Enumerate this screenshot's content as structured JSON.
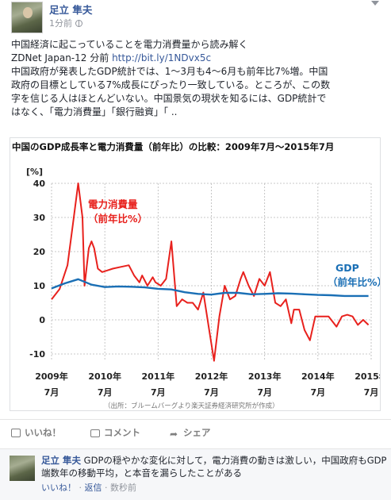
{
  "post": {
    "author": "足立 隼夫",
    "time": "1分前",
    "text_lines": [
      "中国経済に起こっていることを電力消費量から読み解く",
      "ZDNet Japan-12 分前",
      "中国政府が発表したGDP統計では、1～3月も4～6月も前年比7%増。中国",
      "政府の目標としている7%成長にぴったり一致している。ところが、この数",
      "字を信じる人はほとんどいない。中国景気の現状を知るには、GDP統計で",
      "はなく、「電力消費量」「銀行融資」「 .."
    ],
    "link": "http://bit.ly/1NDvx5c"
  },
  "chart_data": {
    "type": "line",
    "title": "中国のGDP成長率と電力消費量（前年比）の比較：2009年7月～2015年7月",
    "ylabel": "[%]",
    "ylim": [
      -10,
      40
    ],
    "yticks": [
      "40",
      "30",
      "20",
      "10",
      "0",
      "-10"
    ],
    "xticks": [
      {
        "year": "2009年",
        "month": "7月",
        "x": 2009.5
      },
      {
        "year": "2010年",
        "month": "7月",
        "x": 2010.5
      },
      {
        "year": "2011年",
        "month": "7月",
        "x": 2011.5
      },
      {
        "year": "2012年",
        "month": "7月",
        "x": 2012.5
      },
      {
        "year": "2013年",
        "month": "7月",
        "x": 2013.5
      },
      {
        "year": "2014年",
        "month": "7月",
        "x": 2014.5
      },
      {
        "year": "2015年",
        "month": "7月",
        "x": 2015.5
      }
    ],
    "xlim": [
      2009.5,
      2015.5
    ],
    "series": [
      {
        "name": "電力消費量\n（前年比%）",
        "color": "#e8211d",
        "x": [
          2009.5,
          2009.65,
          2009.8,
          2009.9,
          2010.0,
          2010.08,
          2010.12,
          2010.2,
          2010.25,
          2010.3,
          2010.37,
          2010.45,
          2010.55,
          2010.65,
          2010.8,
          2010.95,
          2011.05,
          2011.15,
          2011.2,
          2011.3,
          2011.4,
          2011.45,
          2011.55,
          2011.65,
          2011.75,
          2011.85,
          2011.95,
          2012.05,
          2012.15,
          2012.25,
          2012.35,
          2012.45,
          2012.55,
          2012.65,
          2012.75,
          2012.85,
          2012.95,
          2013.05,
          2013.1,
          2013.2,
          2013.3,
          2013.4,
          2013.5,
          2013.6,
          2013.7,
          2013.8,
          2013.9,
          2014.0,
          2014.05,
          2014.15,
          2014.25,
          2014.35,
          2014.45,
          2014.55,
          2014.7,
          2014.85,
          2014.95,
          2015.05,
          2015.15,
          2015.25,
          2015.35,
          2015.45
        ],
        "values": [
          6,
          9,
          16,
          28,
          40,
          30,
          10,
          21,
          23,
          21,
          15,
          14,
          14.5,
          15,
          15.5,
          16,
          13,
          11,
          13,
          10,
          12.5,
          11,
          10,
          12,
          23,
          4,
          6,
          5,
          5,
          3,
          8,
          -2,
          -12,
          1,
          10,
          6,
          7,
          12,
          14,
          10,
          7,
          12,
          10,
          14,
          5,
          4,
          6,
          -1,
          3,
          3,
          -3,
          -6,
          1,
          1,
          1,
          -2,
          1,
          1.5,
          1,
          -1.5,
          0,
          -1.5
        ]
      },
      {
        "name": "GDP\n（前年比%）",
        "color": "#1a6fb5",
        "x": [
          2009.5,
          2009.75,
          2010.0,
          2010.25,
          2010.5,
          2010.75,
          2011.0,
          2011.25,
          2011.5,
          2011.75,
          2012.0,
          2012.25,
          2012.5,
          2012.75,
          2013.0,
          2013.25,
          2013.5,
          2013.75,
          2014.0,
          2014.25,
          2014.5,
          2014.75,
          2015.0,
          2015.25,
          2015.45
        ],
        "values": [
          9.2,
          10.7,
          11.9,
          10.3,
          9.6,
          9.8,
          9.7,
          9.5,
          9.1,
          8.9,
          8.1,
          7.6,
          7.4,
          7.9,
          7.9,
          7.5,
          7.6,
          7.8,
          7.7,
          7.5,
          7.3,
          7.2,
          7.0,
          7.0,
          7.0
        ]
      }
    ],
    "source": "（出所：ブルームバーグより楽天証券経済研究所が作成）"
  },
  "actions": {
    "like": "いいね！",
    "comment": "コメント",
    "share": "シェア"
  },
  "comment": {
    "author": "足立 隼夫",
    "text": "GDPの穏やかな変化に対して，電力消費の動きは激しい，中国政府もGDP端数年の移動平均，と本音を漏らしたことがある",
    "like": "いいね！",
    "reply": "返信",
    "time": "数秒前"
  },
  "colors": {
    "link": "#365899",
    "power_line": "#e8211d",
    "gdp_line": "#1a6fb5"
  }
}
